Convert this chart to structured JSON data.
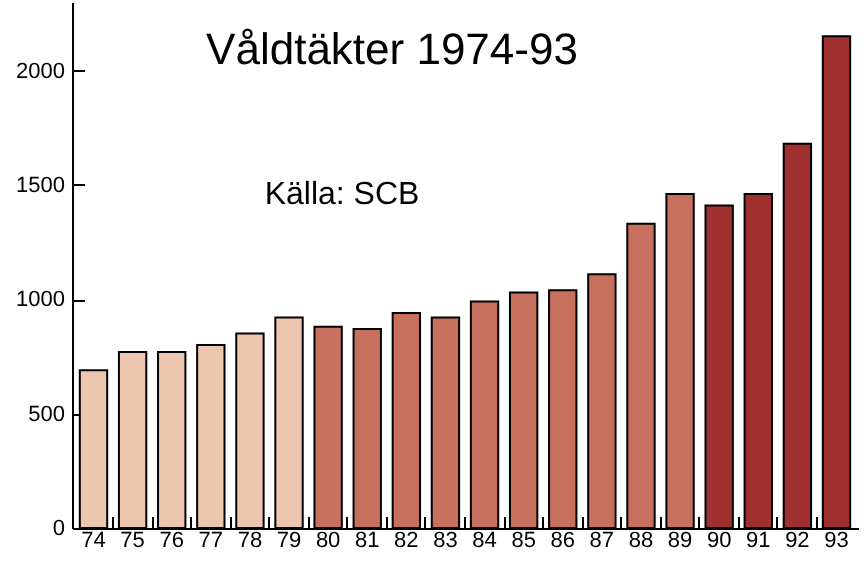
{
  "chart_data": {
    "type": "bar",
    "title": "Våldtäkter 1974-93",
    "annotations": [
      "Källa: SCB"
    ],
    "categories": [
      "74",
      "75",
      "76",
      "77",
      "78",
      "79",
      "80",
      "81",
      "82",
      "83",
      "84",
      "85",
      "86",
      "87",
      "88",
      "89",
      "90",
      "91",
      "92",
      "93"
    ],
    "values": [
      690,
      770,
      770,
      800,
      850,
      920,
      880,
      870,
      940,
      920,
      990,
      1030,
      1040,
      1110,
      1330,
      1460,
      1410,
      1460,
      1680,
      2150
    ],
    "colors": [
      "#ecc6ae",
      "#ecc6ae",
      "#ecc6ae",
      "#ecc6ae",
      "#ecc6ae",
      "#ecc6ae",
      "#c8705e",
      "#c8705e",
      "#c8705e",
      "#c8705e",
      "#c8705e",
      "#c8705e",
      "#c8705e",
      "#c8705e",
      "#c8705e",
      "#c8705e",
      "#a0302f",
      "#a0302f",
      "#a0302f",
      "#a0302f"
    ],
    "ylim": [
      0,
      2300
    ],
    "yticks": [
      0,
      500,
      1000,
      1500,
      2000
    ],
    "grid": false
  }
}
